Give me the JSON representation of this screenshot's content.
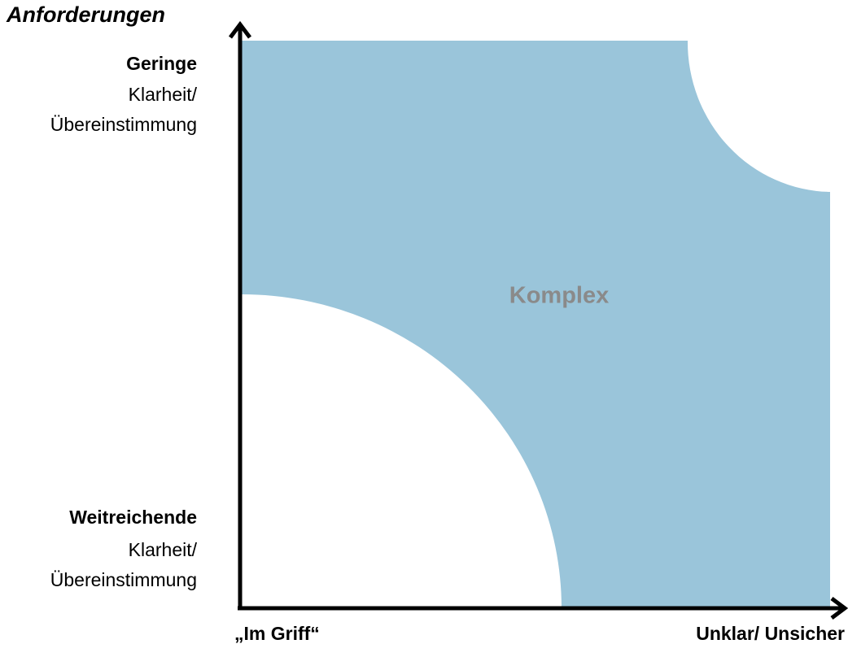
{
  "title": "Anforderungen",
  "center_label": "Komplex",
  "y_top": {
    "bold": "Geringe",
    "lines": [
      "Klarheit/",
      "Übereinstimmung"
    ]
  },
  "y_bottom": {
    "bold": "Weitreichende",
    "lines": [
      "Klarheit/",
      "Übereinstimmung"
    ]
  },
  "x_left": "„Im Griff“",
  "x_right": "Unklar/ Unsicher"
}
